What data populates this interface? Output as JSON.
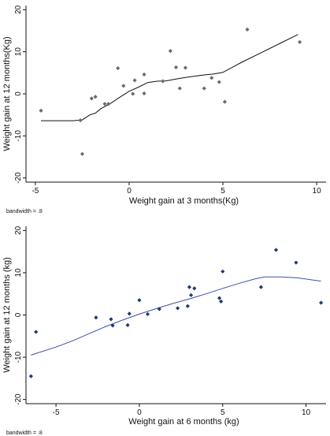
{
  "chart_data": [
    {
      "type": "scatter",
      "title": "",
      "xlabel": "Weight gain at 3 months(Kg)",
      "ylabel": "Weight gain at 12 months(Kg)",
      "xlim": [
        -5.5,
        10.5
      ],
      "ylim": [
        -21,
        21
      ],
      "xticks": [
        -5,
        0,
        5,
        10
      ],
      "yticks": [
        -20,
        -10,
        0,
        10,
        20
      ],
      "note": "bandwidth = .8",
      "marker_color": "#6b6b6b",
      "line_color": "#111111",
      "points": [
        {
          "x": -4.7,
          "y": -4.0
        },
        {
          "x": -2.6,
          "y": -6.3
        },
        {
          "x": -2.5,
          "y": -14.3
        },
        {
          "x": -2.0,
          "y": -1.1
        },
        {
          "x": -1.8,
          "y": -0.7
        },
        {
          "x": -1.3,
          "y": -2.4
        },
        {
          "x": -1.1,
          "y": -2.4
        },
        {
          "x": -0.6,
          "y": 6.1
        },
        {
          "x": -0.3,
          "y": 1.9
        },
        {
          "x": 0.2,
          "y": 0.0
        },
        {
          "x": 0.3,
          "y": 3.2
        },
        {
          "x": 0.8,
          "y": 0.1
        },
        {
          "x": 0.8,
          "y": 4.6
        },
        {
          "x": 1.8,
          "y": 3.0
        },
        {
          "x": 2.2,
          "y": 10.2
        },
        {
          "x": 2.5,
          "y": 6.3
        },
        {
          "x": 2.7,
          "y": 1.3
        },
        {
          "x": 3.0,
          "y": 6.2
        },
        {
          "x": 4.0,
          "y": 1.3
        },
        {
          "x": 4.4,
          "y": 3.8
        },
        {
          "x": 4.8,
          "y": 2.8
        },
        {
          "x": 5.1,
          "y": -1.9
        },
        {
          "x": 6.3,
          "y": 15.3
        },
        {
          "x": 9.1,
          "y": 12.3
        }
      ],
      "fit": {
        "x": [
          -4.7,
          -3.0,
          -2.5,
          -2.1,
          -1.8,
          -1.5,
          -1.0,
          -0.5,
          0.0,
          0.5,
          1.0,
          1.5,
          2.0,
          2.5,
          3.0,
          3.5,
          4.0,
          4.5,
          5.0,
          5.5,
          6.0,
          7.0,
          8.0,
          9.0
        ],
        "y": [
          -6.4,
          -6.4,
          -6.2,
          -5.0,
          -4.6,
          -3.5,
          -2.3,
          -0.8,
          0.6,
          1.6,
          2.7,
          3.0,
          3.1,
          3.5,
          3.9,
          4.2,
          4.5,
          4.7,
          5.1,
          6.3,
          7.5,
          9.7,
          11.9,
          14.1
        ]
      }
    },
    {
      "type": "scatter",
      "title": "",
      "xlabel": "Weight gain at 6 months (kg)",
      "ylabel": "Weight gain at 12 months (kg)",
      "xlim": [
        -6.8,
        11.2
      ],
      "ylim": [
        -21,
        21
      ],
      "xticks": [
        -5,
        0,
        5,
        10
      ],
      "yticks": [
        -20,
        -10,
        0,
        10,
        20
      ],
      "note": "bandwidth = .8",
      "marker_color": "#1f3a6e",
      "line_color": "#3a4fa8",
      "points": [
        {
          "x": -6.5,
          "y": -14.5
        },
        {
          "x": -6.2,
          "y": -4.0
        },
        {
          "x": -2.6,
          "y": -0.6
        },
        {
          "x": -1.7,
          "y": -1.0
        },
        {
          "x": -1.6,
          "y": -2.5
        },
        {
          "x": -0.7,
          "y": -2.4
        },
        {
          "x": -0.6,
          "y": 0.3
        },
        {
          "x": 0.0,
          "y": 3.5
        },
        {
          "x": 0.5,
          "y": 0.2
        },
        {
          "x": 1.2,
          "y": 1.4
        },
        {
          "x": 2.3,
          "y": 1.6
        },
        {
          "x": 2.9,
          "y": 2.1
        },
        {
          "x": 3.0,
          "y": 6.6
        },
        {
          "x": 3.1,
          "y": 4.7
        },
        {
          "x": 3.3,
          "y": 6.3
        },
        {
          "x": 4.8,
          "y": 4.0
        },
        {
          "x": 4.9,
          "y": 3.2
        },
        {
          "x": 5.0,
          "y": 10.3
        },
        {
          "x": 7.3,
          "y": 6.6
        },
        {
          "x": 8.2,
          "y": 15.4
        },
        {
          "x": 9.4,
          "y": 12.4
        },
        {
          "x": 10.9,
          "y": 2.9
        }
      ],
      "fit": {
        "x": [
          -6.5,
          -5.0,
          -4.0,
          -3.0,
          -2.0,
          -1.0,
          0.0,
          1.0,
          2.0,
          3.0,
          4.0,
          5.0,
          6.0,
          7.0,
          7.5,
          8.5,
          9.5,
          10.9
        ],
        "y": [
          -9.5,
          -7.6,
          -6.1,
          -4.4,
          -2.7,
          -1.2,
          0.2,
          1.5,
          2.7,
          3.8,
          5.0,
          6.3,
          7.5,
          8.6,
          9.0,
          9.0,
          8.8,
          8.0
        ]
      }
    }
  ]
}
